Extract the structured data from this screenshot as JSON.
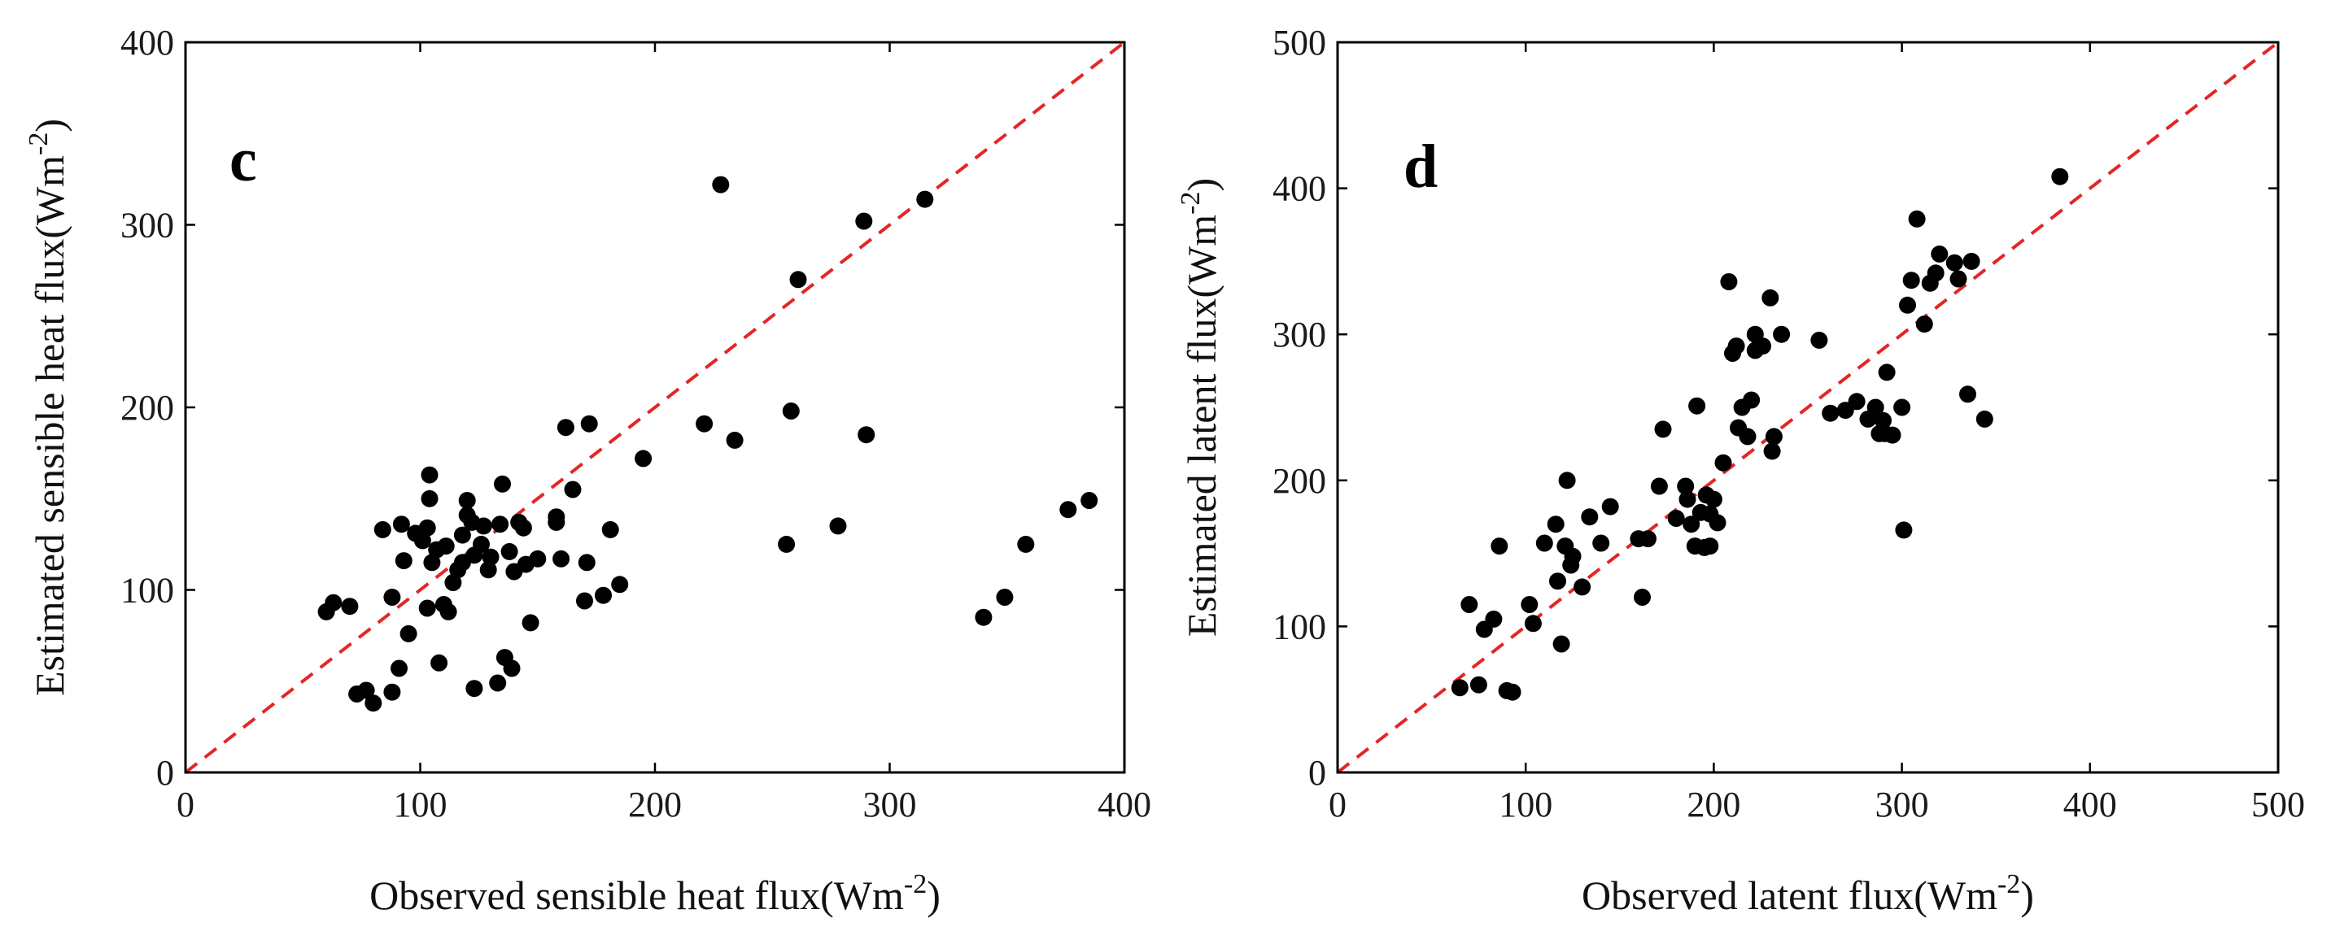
{
  "colors": {
    "points": "#000000",
    "reference_line": "#e32626",
    "frame": "#000000"
  },
  "chart_data": [
    {
      "type": "scatter",
      "panel_label": "c",
      "xlabel": "Observed sensible heat flux(Wm",
      "xlabel_sup": "-2",
      "xlabel_end": ")",
      "ylabel": "Estimated sensible heat flux(Wm",
      "ylabel_sup": "-2",
      "ylabel_end": ")",
      "xlim": [
        0,
        400
      ],
      "ylim": [
        0,
        400
      ],
      "xticks": [
        0,
        100,
        200,
        300,
        400
      ],
      "yticks": [
        0,
        100,
        200,
        300,
        400
      ],
      "reference_line": {
        "from": [
          0,
          0
        ],
        "to": [
          400,
          400
        ],
        "style": "dashed"
      },
      "points": [
        [
          60,
          88
        ],
        [
          63,
          93
        ],
        [
          70,
          91
        ],
        [
          73,
          43
        ],
        [
          77,
          45
        ],
        [
          80,
          38
        ],
        [
          84,
          133
        ],
        [
          88,
          96
        ],
        [
          88,
          44
        ],
        [
          91,
          57
        ],
        [
          92,
          136
        ],
        [
          93,
          116
        ],
        [
          95,
          76
        ],
        [
          98,
          131
        ],
        [
          101,
          127
        ],
        [
          103,
          134
        ],
        [
          103,
          90
        ],
        [
          104,
          150
        ],
        [
          104,
          163
        ],
        [
          105,
          115
        ],
        [
          107,
          122
        ],
        [
          108,
          60
        ],
        [
          110,
          92
        ],
        [
          111,
          124
        ],
        [
          112,
          88
        ],
        [
          114,
          104
        ],
        [
          116,
          111
        ],
        [
          118,
          115
        ],
        [
          118,
          130
        ],
        [
          120,
          149
        ],
        [
          120,
          141
        ],
        [
          122,
          137
        ],
        [
          123,
          119
        ],
        [
          123,
          46
        ],
        [
          126,
          125
        ],
        [
          127,
          135
        ],
        [
          129,
          111
        ],
        [
          130,
          118
        ],
        [
          133,
          49
        ],
        [
          134,
          136
        ],
        [
          135,
          158
        ],
        [
          136,
          63
        ],
        [
          138,
          121
        ],
        [
          139,
          57
        ],
        [
          140,
          110
        ],
        [
          142,
          137
        ],
        [
          144,
          134
        ],
        [
          145,
          114
        ],
        [
          147,
          82
        ],
        [
          150,
          117
        ],
        [
          158,
          137
        ],
        [
          158,
          140
        ],
        [
          160,
          117
        ],
        [
          162,
          189
        ],
        [
          165,
          155
        ],
        [
          170,
          94
        ],
        [
          171,
          115
        ],
        [
          172,
          191
        ],
        [
          178,
          97
        ],
        [
          181,
          133
        ],
        [
          185,
          103
        ],
        [
          195,
          172
        ],
        [
          221,
          191
        ],
        [
          228,
          322
        ],
        [
          234,
          182
        ],
        [
          256,
          125
        ],
        [
          258,
          198
        ],
        [
          261,
          270
        ],
        [
          278,
          135
        ],
        [
          289,
          302
        ],
        [
          290,
          185
        ],
        [
          315,
          314
        ],
        [
          340,
          85
        ],
        [
          349,
          96
        ],
        [
          358,
          125
        ],
        [
          376,
          144
        ],
        [
          385,
          149
        ]
      ]
    },
    {
      "type": "scatter",
      "panel_label": "d",
      "xlabel": "Observed latent flux(Wm",
      "xlabel_sup": "-2",
      "xlabel_end": ")",
      "ylabel": "Estimated latent flux(Wm",
      "ylabel_sup": "-2",
      "ylabel_end": ")",
      "xlim": [
        0,
        500
      ],
      "ylim": [
        0,
        500
      ],
      "xticks": [
        0,
        100,
        200,
        300,
        400,
        500
      ],
      "yticks": [
        0,
        100,
        200,
        300,
        400,
        500
      ],
      "reference_line": {
        "from": [
          0,
          0
        ],
        "to": [
          500,
          500
        ],
        "style": "dashed"
      },
      "points": [
        [
          65,
          58
        ],
        [
          70,
          115
        ],
        [
          75,
          60
        ],
        [
          78,
          98
        ],
        [
          83,
          105
        ],
        [
          86,
          155
        ],
        [
          90,
          56
        ],
        [
          93,
          55
        ],
        [
          102,
          115
        ],
        [
          104,
          102
        ],
        [
          110,
          157
        ],
        [
          116,
          170
        ],
        [
          117,
          131
        ],
        [
          119,
          88
        ],
        [
          121,
          155
        ],
        [
          122,
          200
        ],
        [
          124,
          142
        ],
        [
          125,
          148
        ],
        [
          130,
          127
        ],
        [
          134,
          175
        ],
        [
          140,
          157
        ],
        [
          145,
          182
        ],
        [
          160,
          160
        ],
        [
          162,
          120
        ],
        [
          165,
          160
        ],
        [
          171,
          196
        ],
        [
          173,
          235
        ],
        [
          180,
          174
        ],
        [
          185,
          196
        ],
        [
          186,
          187
        ],
        [
          188,
          170
        ],
        [
          190,
          155
        ],
        [
          191,
          251
        ],
        [
          193,
          178
        ],
        [
          195,
          154
        ],
        [
          196,
          190
        ],
        [
          198,
          155
        ],
        [
          198,
          177
        ],
        [
          200,
          187
        ],
        [
          202,
          171
        ],
        [
          205,
          212
        ],
        [
          208,
          336
        ],
        [
          210,
          287
        ],
        [
          212,
          292
        ],
        [
          213,
          236
        ],
        [
          215,
          250
        ],
        [
          218,
          230
        ],
        [
          220,
          255
        ],
        [
          222,
          300
        ],
        [
          222,
          289
        ],
        [
          226,
          292
        ],
        [
          230,
          325
        ],
        [
          231,
          220
        ],
        [
          232,
          230
        ],
        [
          236,
          300
        ],
        [
          256,
          296
        ],
        [
          262,
          246
        ],
        [
          270,
          248
        ],
        [
          276,
          254
        ],
        [
          282,
          242
        ],
        [
          286,
          250
        ],
        [
          288,
          232
        ],
        [
          290,
          241
        ],
        [
          291,
          232
        ],
        [
          292,
          274
        ],
        [
          295,
          231
        ],
        [
          300,
          250
        ],
        [
          301,
          166
        ],
        [
          303,
          320
        ],
        [
          305,
          337
        ],
        [
          308,
          379
        ],
        [
          312,
          307
        ],
        [
          315,
          335
        ],
        [
          318,
          342
        ],
        [
          320,
          355
        ],
        [
          328,
          349
        ],
        [
          330,
          338
        ],
        [
          335,
          259
        ],
        [
          337,
          350
        ],
        [
          344,
          242
        ],
        [
          384,
          408
        ]
      ]
    }
  ]
}
